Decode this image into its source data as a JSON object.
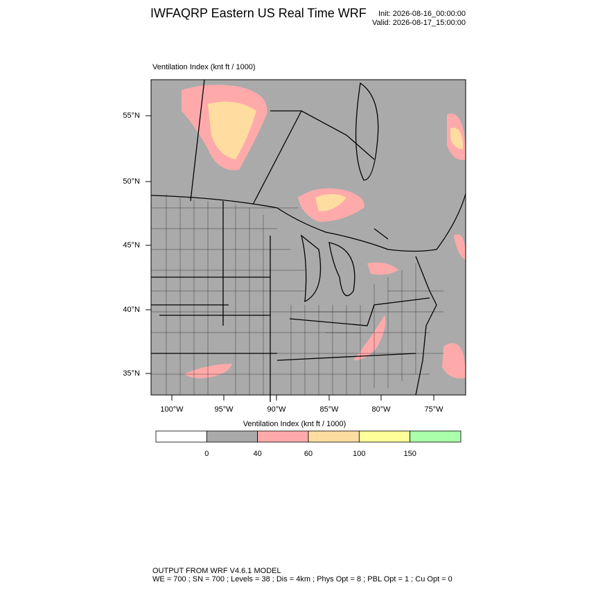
{
  "header": {
    "title": "IWFAQRP Eastern US Real Time WRF",
    "init": "Init: 2026-08-16_00:00:00",
    "valid": "Valid: 2026-08-17_15:00:00"
  },
  "map": {
    "label": "Ventilation Index   (knt ft / 1000)",
    "lat_labels": [
      "55°N",
      "50°N",
      "45°N",
      "40°N",
      "35°N"
    ],
    "lon_labels": [
      "100°W",
      "95°W",
      "90°W",
      "85°W",
      "80°W",
      "75°W"
    ],
    "land_color": "#aaaaaa"
  },
  "colorbar": {
    "title": "Ventilation Index  (knt ft / 1000)",
    "levels": [
      0,
      40,
      60,
      100,
      150
    ],
    "colors": [
      "#ffffff",
      "#aaaaaa",
      "#ffaaaa",
      "#ffdda0",
      "#ffff99",
      "#aaffaa"
    ]
  },
  "footer": {
    "line1": "OUTPUT FROM WRF V4.6.1 MODEL",
    "line2": "WE = 700 ; SN = 700 ; Levels = 38 ; Dis = 4km ; Phys Opt = 8 ; PBL Opt = 1 ; Cu Opt = 0"
  }
}
